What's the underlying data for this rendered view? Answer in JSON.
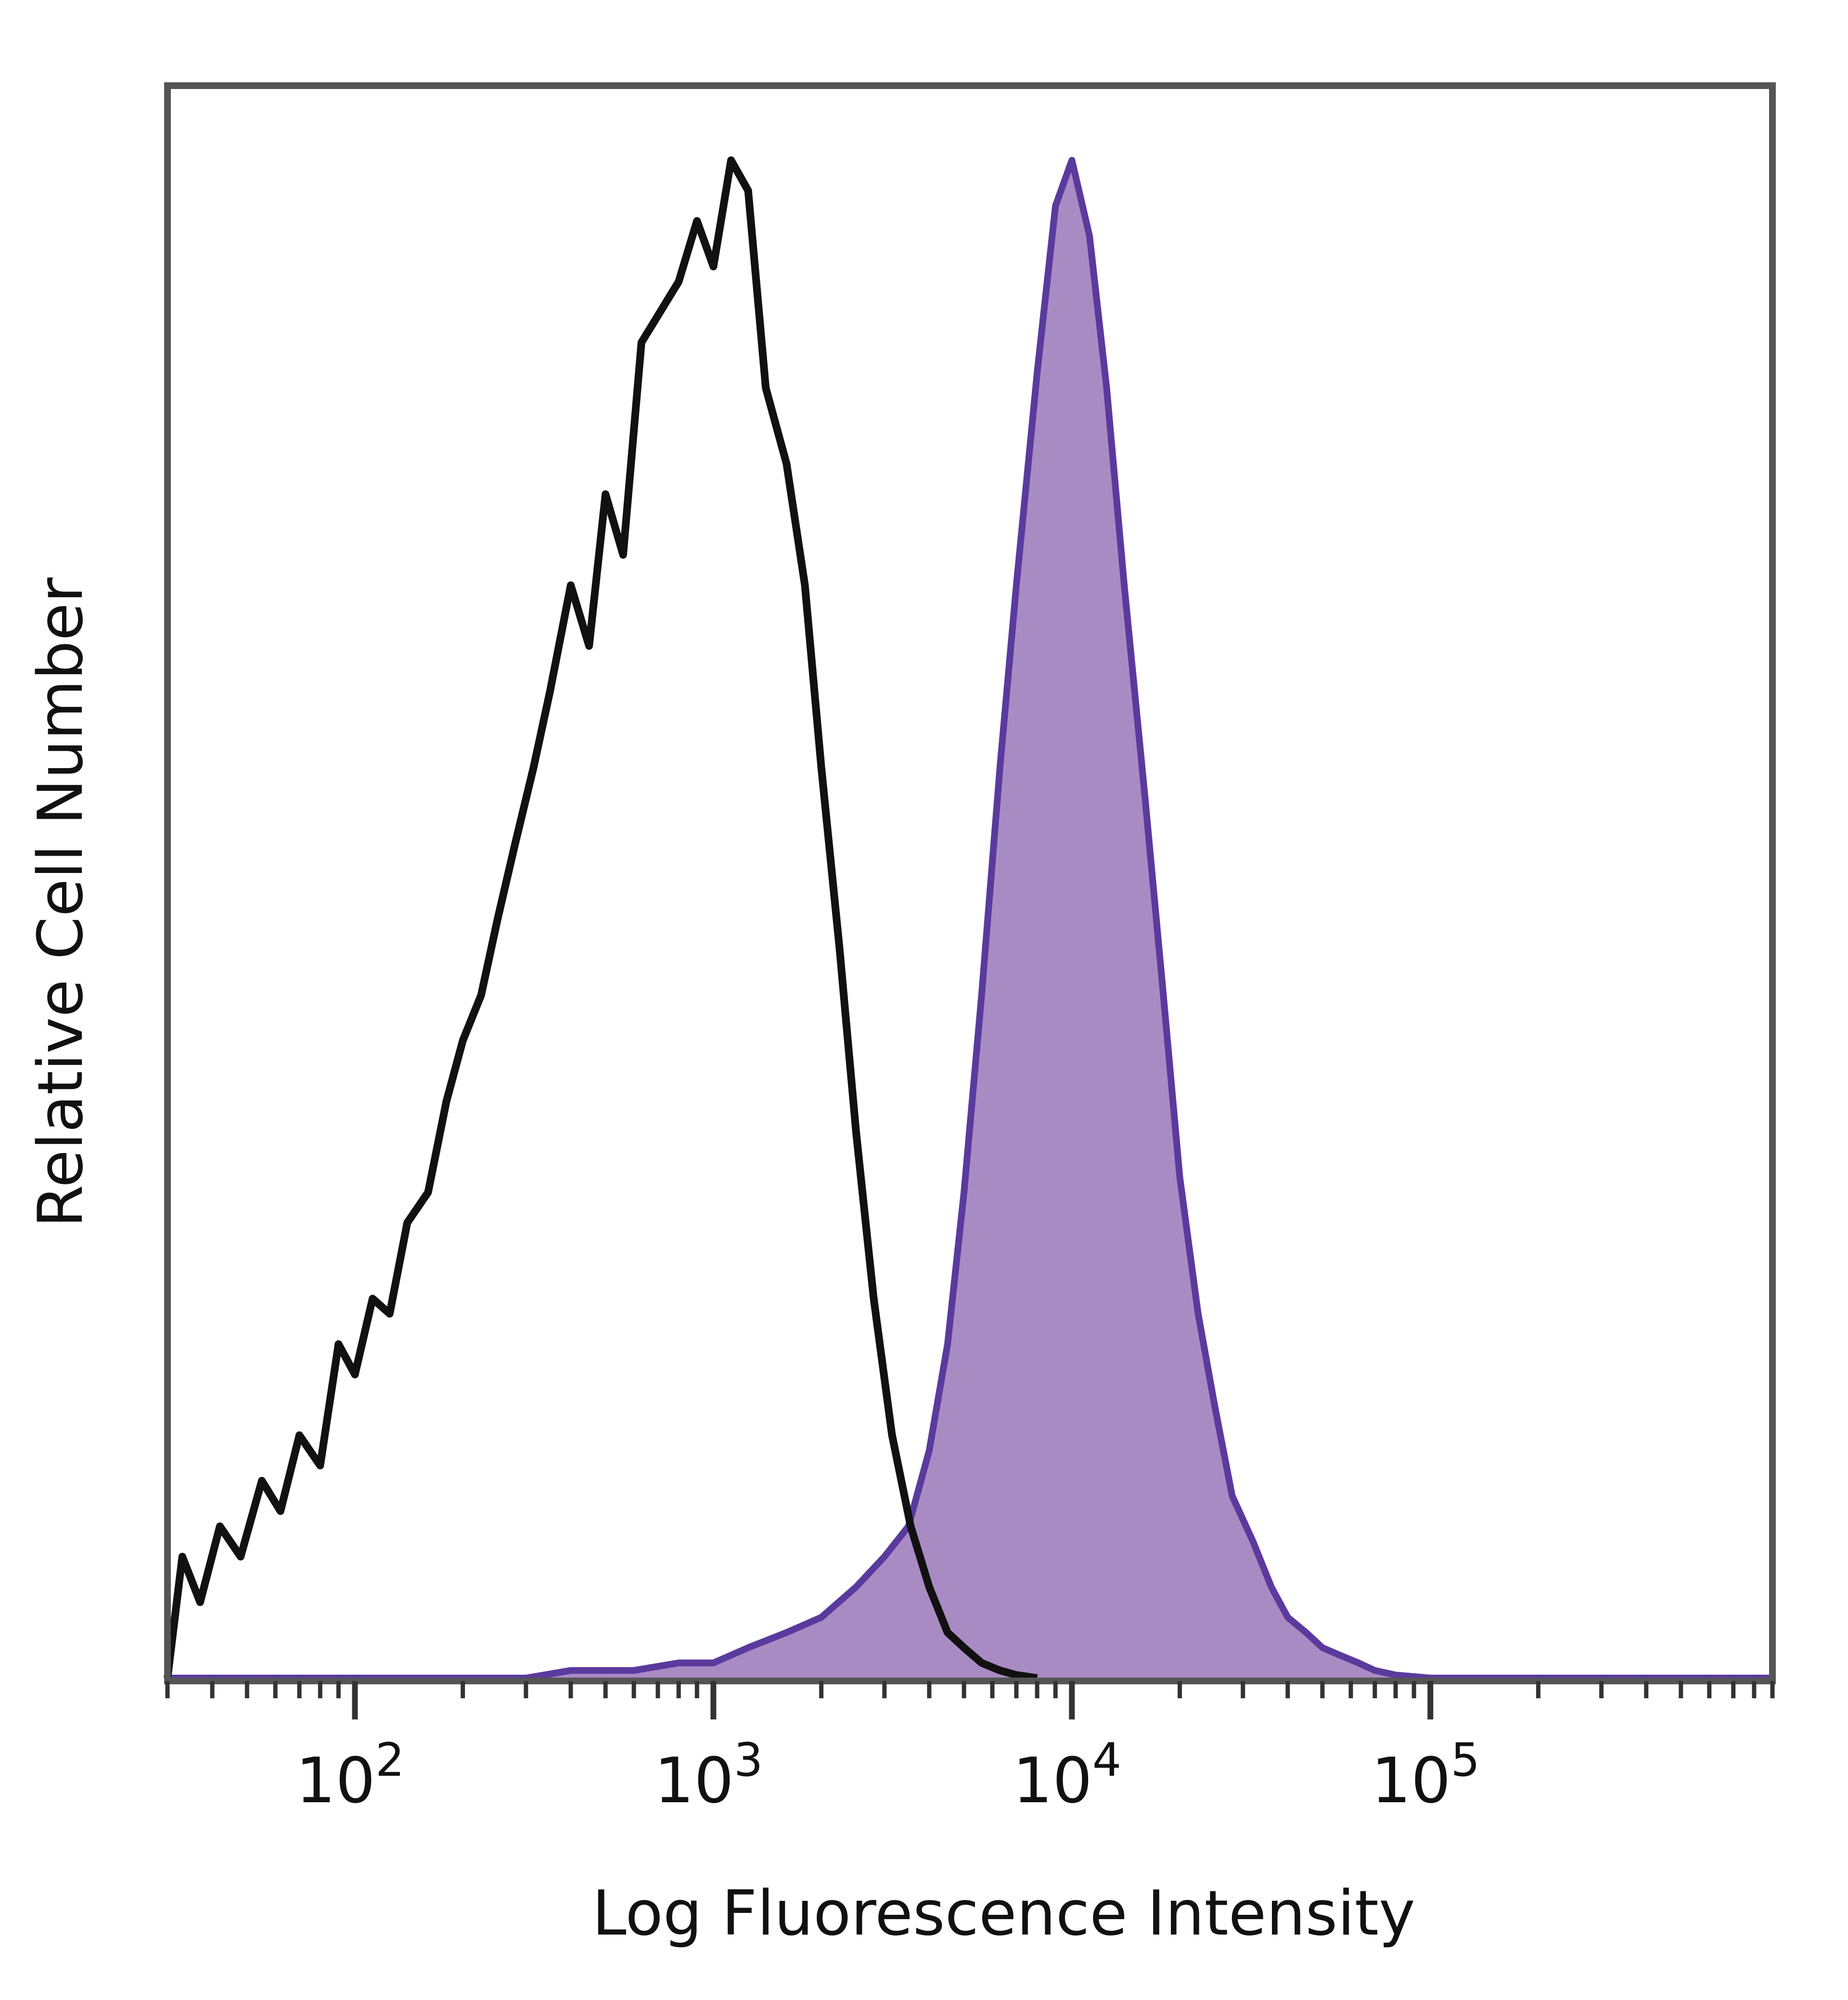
{
  "chart_data": {
    "type": "area",
    "title": "",
    "xlabel": "Log Fluorescence Intensity",
    "ylabel": "Relative Cell Number",
    "x_scale": "log",
    "xlim": [
      30,
      900000
    ],
    "ylim": [
      0,
      100
    ],
    "x_ticks": [
      {
        "value": 100,
        "base": "10",
        "exp": "2"
      },
      {
        "value": 1000,
        "base": "10",
        "exp": "3"
      },
      {
        "value": 10000,
        "base": "10",
        "exp": "4"
      },
      {
        "value": 100000,
        "base": "10",
        "exp": "5"
      }
    ],
    "grid": false,
    "legend": "none",
    "series": [
      {
        "style": "outline",
        "color": "#111111",
        "x": [
          30,
          33,
          37,
          42,
          48,
          55,
          62,
          70,
          80,
          90,
          100,
          112,
          125,
          140,
          160,
          180,
          200,
          225,
          250,
          280,
          315,
          350,
          400,
          450,
          500,
          560,
          630,
          710,
          800,
          900,
          1000,
          1120,
          1250,
          1400,
          1600,
          1800,
          2000,
          2250,
          2500,
          2800,
          3150,
          3550,
          4000,
          4500,
          5000,
          5600,
          6300,
          7000,
          8000
        ],
        "y": [
          0,
          8,
          5,
          10,
          8,
          13,
          11,
          16,
          14,
          22,
          20,
          25,
          24,
          30,
          32,
          38,
          42,
          45,
          50,
          55,
          60,
          65,
          72,
          68,
          78,
          74,
          88,
          90,
          92,
          96,
          93,
          100,
          98,
          85,
          80,
          72,
          60,
          48,
          36,
          25,
          16,
          10,
          6,
          3,
          2,
          1,
          0.5,
          0.2,
          0
        ]
      },
      {
        "style": "filled",
        "color": "#5b3a9e",
        "fill": "#a98bc4",
        "x": [
          30,
          100,
          300,
          400,
          600,
          800,
          1000,
          1250,
          1600,
          2000,
          2500,
          3000,
          3500,
          4000,
          4500,
          5000,
          5600,
          6300,
          7000,
          8000,
          9000,
          10000,
          11200,
          12500,
          14000,
          16000,
          18000,
          20000,
          22500,
          25000,
          28000,
          32000,
          36000,
          40000,
          45000,
          50000,
          56000,
          63000,
          70000,
          80000,
          100000,
          300000,
          900000
        ],
        "y": [
          0,
          0,
          0,
          0.5,
          0.5,
          1,
          1,
          2,
          3,
          4,
          6,
          8,
          10,
          15,
          22,
          32,
          45,
          60,
          72,
          86,
          97,
          100,
          95,
          85,
          72,
          58,
          45,
          33,
          24,
          18,
          12,
          9,
          6,
          4,
          3,
          2,
          1.5,
          1,
          0.5,
          0.2,
          0,
          0,
          0
        ]
      }
    ]
  }
}
